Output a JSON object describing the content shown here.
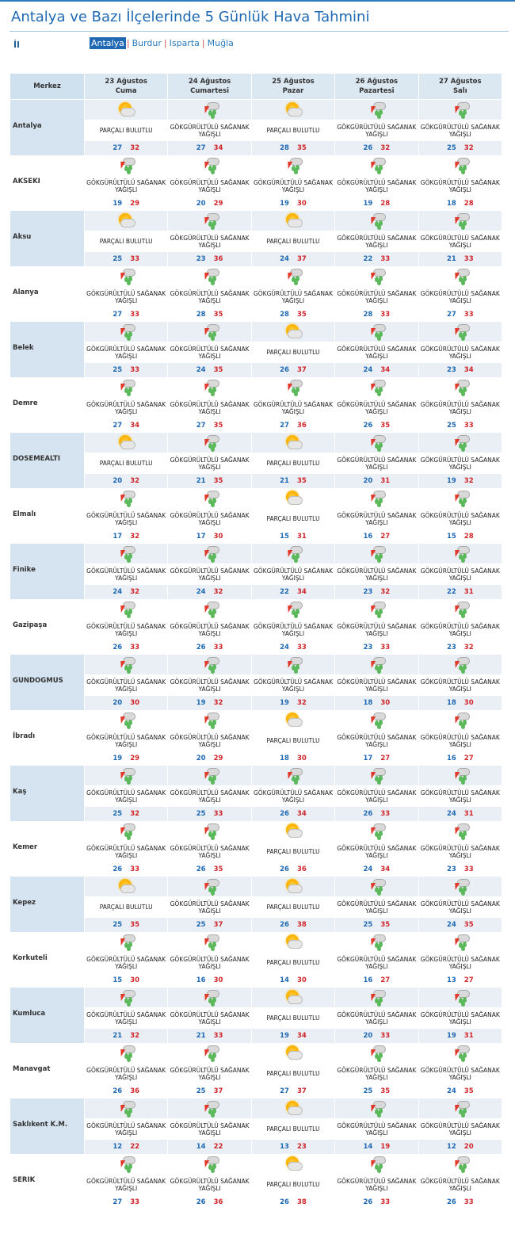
{
  "page": {
    "title": "Antalya ve Bazı İlçelerinde 5 Günlük Hava Tahmini",
    "il_label": "İl",
    "provinces": [
      "Antalya",
      "Burdur",
      "Isparta",
      "Muğla"
    ],
    "active_province": "Antalya"
  },
  "table": {
    "merkez_header": "Merkez",
    "days": [
      {
        "date": "23 Ağustos",
        "weekday": "Cuma"
      },
      {
        "date": "24 Ağustos",
        "weekday": "Cumartesi"
      },
      {
        "date": "25 Ağustos",
        "weekday": "Pazar"
      },
      {
        "date": "26 Ağustos",
        "weekday": "Pazartesi"
      },
      {
        "date": "27 Ağustos",
        "weekday": "Salı"
      }
    ],
    "conditions": {
      "P": {
        "text": "PARÇALI BULUTLU",
        "icon": "partly-cloudy-icon"
      },
      "G": {
        "text": "GÖKGÜRÜLTÜLÜ SAĞANAK YAĞIŞLI",
        "icon": "thunderstorm-icon"
      }
    },
    "rows": [
      {
        "name": "Antalya",
        "f": [
          [
            "P",
            27,
            32
          ],
          [
            "G",
            27,
            34
          ],
          [
            "P",
            28,
            35
          ],
          [
            "G",
            26,
            32
          ],
          [
            "G",
            25,
            32
          ]
        ]
      },
      {
        "name": "AKSEKI",
        "f": [
          [
            "G",
            19,
            29
          ],
          [
            "G",
            20,
            29
          ],
          [
            "G",
            19,
            30
          ],
          [
            "G",
            19,
            28
          ],
          [
            "G",
            18,
            28
          ]
        ]
      },
      {
        "name": "Aksu",
        "f": [
          [
            "P",
            25,
            33
          ],
          [
            "G",
            23,
            36
          ],
          [
            "P",
            24,
            37
          ],
          [
            "G",
            22,
            33
          ],
          [
            "G",
            21,
            33
          ]
        ]
      },
      {
        "name": "Alanya",
        "f": [
          [
            "G",
            27,
            33
          ],
          [
            "G",
            28,
            35
          ],
          [
            "G",
            28,
            35
          ],
          [
            "G",
            28,
            33
          ],
          [
            "G",
            27,
            33
          ]
        ]
      },
      {
        "name": "Belek",
        "f": [
          [
            "G",
            25,
            33
          ],
          [
            "G",
            24,
            35
          ],
          [
            "P",
            26,
            37
          ],
          [
            "G",
            24,
            34
          ],
          [
            "G",
            23,
            34
          ]
        ]
      },
      {
        "name": "Demre",
        "f": [
          [
            "G",
            27,
            34
          ],
          [
            "G",
            27,
            35
          ],
          [
            "G",
            27,
            36
          ],
          [
            "G",
            26,
            35
          ],
          [
            "G",
            25,
            33
          ]
        ]
      },
      {
        "name": "DOSEMEALTI",
        "f": [
          [
            "P",
            20,
            32
          ],
          [
            "G",
            21,
            35
          ],
          [
            "P",
            21,
            35
          ],
          [
            "G",
            20,
            31
          ],
          [
            "G",
            19,
            32
          ]
        ]
      },
      {
        "name": "Elmalı",
        "f": [
          [
            "G",
            17,
            32
          ],
          [
            "G",
            17,
            30
          ],
          [
            "P",
            15,
            31
          ],
          [
            "G",
            16,
            27
          ],
          [
            "G",
            15,
            28
          ]
        ]
      },
      {
        "name": "Finike",
        "f": [
          [
            "G",
            24,
            32
          ],
          [
            "G",
            24,
            32
          ],
          [
            "G",
            22,
            34
          ],
          [
            "G",
            23,
            32
          ],
          [
            "G",
            22,
            31
          ]
        ]
      },
      {
        "name": "Gazipaşa",
        "f": [
          [
            "G",
            26,
            33
          ],
          [
            "G",
            26,
            33
          ],
          [
            "G",
            24,
            33
          ],
          [
            "G",
            23,
            33
          ],
          [
            "G",
            23,
            32
          ]
        ]
      },
      {
        "name": "GUNDOGMUS",
        "f": [
          [
            "G",
            20,
            30
          ],
          [
            "G",
            19,
            32
          ],
          [
            "G",
            19,
            32
          ],
          [
            "G",
            18,
            30
          ],
          [
            "G",
            18,
            30
          ]
        ]
      },
      {
        "name": "İbradı",
        "f": [
          [
            "G",
            19,
            29
          ],
          [
            "G",
            20,
            29
          ],
          [
            "P",
            18,
            30
          ],
          [
            "G",
            17,
            27
          ],
          [
            "G",
            16,
            27
          ]
        ]
      },
      {
        "name": "Kaş",
        "f": [
          [
            "G",
            25,
            32
          ],
          [
            "G",
            25,
            33
          ],
          [
            "G",
            26,
            34
          ],
          [
            "G",
            26,
            33
          ],
          [
            "G",
            24,
            31
          ]
        ]
      },
      {
        "name": "Kemer",
        "f": [
          [
            "G",
            26,
            33
          ],
          [
            "G",
            26,
            35
          ],
          [
            "P",
            26,
            36
          ],
          [
            "G",
            24,
            34
          ],
          [
            "G",
            23,
            33
          ]
        ]
      },
      {
        "name": "Kepez",
        "f": [
          [
            "P",
            25,
            35
          ],
          [
            "G",
            25,
            37
          ],
          [
            "P",
            26,
            38
          ],
          [
            "G",
            25,
            35
          ],
          [
            "G",
            24,
            35
          ]
        ]
      },
      {
        "name": "Korkuteli",
        "f": [
          [
            "G",
            15,
            30
          ],
          [
            "G",
            16,
            30
          ],
          [
            "P",
            14,
            30
          ],
          [
            "G",
            16,
            27
          ],
          [
            "G",
            13,
            27
          ]
        ]
      },
      {
        "name": "Kumluca",
        "f": [
          [
            "G",
            21,
            32
          ],
          [
            "G",
            21,
            33
          ],
          [
            "P",
            19,
            34
          ],
          [
            "G",
            20,
            33
          ],
          [
            "G",
            19,
            31
          ]
        ]
      },
      {
        "name": "Manavgat",
        "f": [
          [
            "G",
            26,
            36
          ],
          [
            "G",
            25,
            37
          ],
          [
            "P",
            27,
            37
          ],
          [
            "G",
            25,
            35
          ],
          [
            "G",
            24,
            35
          ]
        ]
      },
      {
        "name": "Saklıkent K.M.",
        "f": [
          [
            "G",
            12,
            22
          ],
          [
            "G",
            14,
            22
          ],
          [
            "P",
            13,
            23
          ],
          [
            "G",
            14,
            19
          ],
          [
            "G",
            12,
            20
          ]
        ]
      },
      {
        "name": "SERIK",
        "f": [
          [
            "G",
            27,
            33
          ],
          [
            "G",
            26,
            36
          ],
          [
            "P",
            26,
            38
          ],
          [
            "G",
            26,
            33
          ],
          [
            "G",
            26,
            33
          ]
        ]
      }
    ]
  }
}
